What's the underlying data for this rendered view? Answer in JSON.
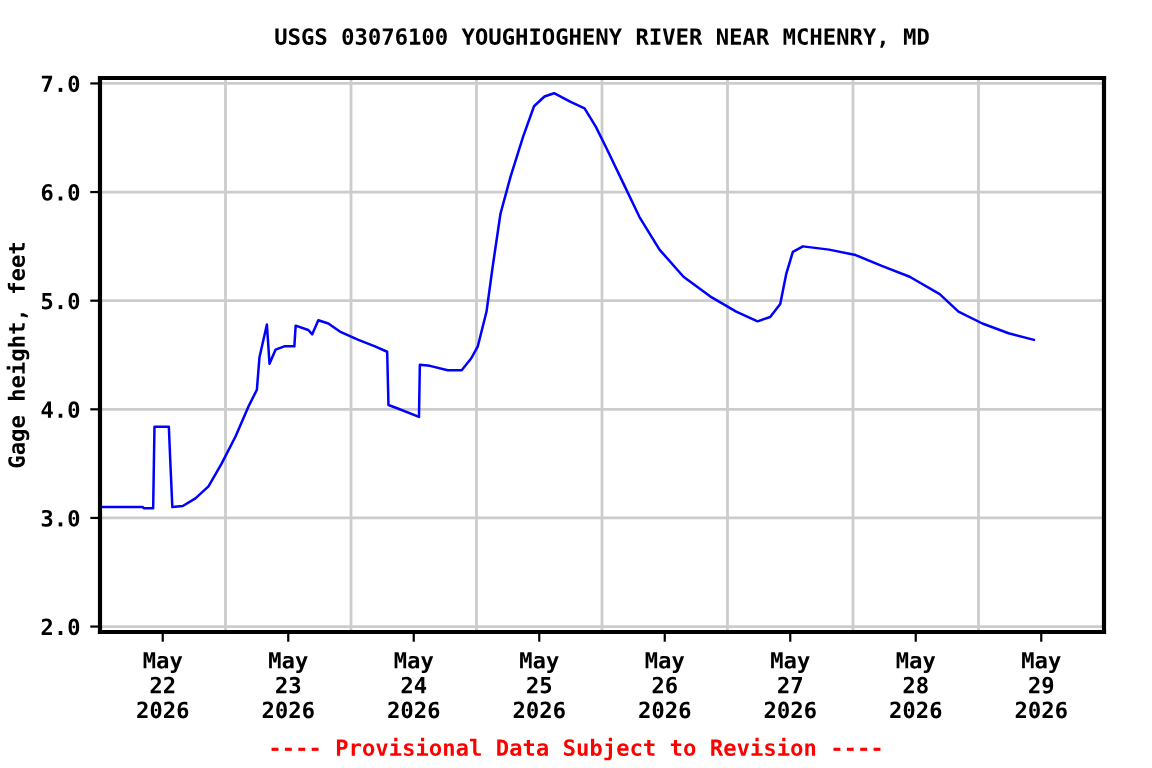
{
  "chart_data": {
    "type": "line",
    "title": "USGS 03076100 YOUGHIOGHENY RIVER NEAR MCHENRY, MD",
    "ylabel": "Gage height, feet",
    "annotations": [
      "---- Provisional Data Subject to Revision ----"
    ],
    "x": [
      "2026-05-21T12:30",
      "2026-05-21T20:10",
      "2026-05-21T20:25",
      "2026-05-21T22:10",
      "2026-05-21T22:25",
      "2026-05-22T01:10",
      "2026-05-22T01:25",
      "2026-05-22T01:50",
      "2026-05-22T03:50",
      "2026-05-22T06:15",
      "2026-05-22T08:45",
      "2026-05-22T11:15",
      "2026-05-22T13:55",
      "2026-05-22T16:20",
      "2026-05-22T18:00",
      "2026-05-22T18:30",
      "2026-05-22T19:55",
      "2026-05-22T20:25",
      "2026-05-22T21:35",
      "2026-05-22T23:15",
      "2026-05-23T01:10",
      "2026-05-23T01:25",
      "2026-05-23T03:50",
      "2026-05-23T04:35",
      "2026-05-23T05:45",
      "2026-05-23T07:40",
      "2026-05-23T10:05",
      "2026-05-23T13:25",
      "2026-05-23T16:35",
      "2026-05-23T18:55",
      "2026-05-23T19:10",
      "2026-05-23T20:50",
      "2026-05-24T01:00",
      "2026-05-24T01:10",
      "2026-05-24T03:05",
      "2026-05-24T06:30",
      "2026-05-24T09:10",
      "2026-05-24T11:00",
      "2026-05-24T12:15",
      "2026-05-24T13:55",
      "2026-05-24T15:05",
      "2026-05-24T16:35",
      "2026-05-24T18:30",
      "2026-05-24T20:55",
      "2026-05-24T23:00",
      "2026-05-25T01:00",
      "2026-05-25T02:50",
      "2026-05-25T06:00",
      "2026-05-25T08:40",
      "2026-05-25T10:50",
      "2026-05-25T13:00",
      "2026-05-25T16:05",
      "2026-05-25T19:10",
      "2026-05-25T23:00",
      "2026-05-26T03:35",
      "2026-05-26T08:40",
      "2026-05-26T13:40",
      "2026-05-26T17:45",
      "2026-05-26T20:10",
      "2026-05-26T22:05",
      "2026-05-26T23:15",
      "2026-05-27T00:30",
      "2026-05-27T02:25",
      "2026-05-27T07:25",
      "2026-05-27T12:30",
      "2026-05-27T17:30",
      "2026-05-27T22:50",
      "2026-05-28T04:35",
      "2026-05-28T08:10",
      "2026-05-28T12:45",
      "2026-05-28T17:45",
      "2026-05-28T22:35"
    ],
    "series": [
      {
        "color": "#0000ff",
        "values": [
          3.1,
          3.1,
          3.09,
          3.09,
          3.84,
          3.84,
          3.55,
          3.1,
          3.11,
          3.18,
          3.29,
          3.5,
          3.75,
          4.02,
          4.18,
          4.48,
          4.78,
          4.42,
          4.55,
          4.58,
          4.58,
          4.77,
          4.73,
          4.69,
          4.82,
          4.79,
          4.71,
          4.64,
          4.58,
          4.53,
          4.04,
          4.01,
          3.93,
          4.41,
          4.4,
          4.36,
          4.36,
          4.47,
          4.58,
          4.9,
          5.31,
          5.8,
          6.14,
          6.51,
          6.79,
          6.88,
          6.91,
          6.83,
          6.77,
          6.6,
          6.39,
          6.08,
          5.77,
          5.47,
          5.22,
          5.04,
          4.9,
          4.81,
          4.85,
          4.97,
          5.25,
          5.45,
          5.5,
          5.47,
          5.42,
          5.32,
          5.22,
          5.06,
          4.9,
          4.79,
          4.7,
          4.64
        ]
      }
    ],
    "xlim": [
      "2026-05-21T12:00",
      "2026-05-29T12:00"
    ],
    "xticks": [
      {
        "value": "2026-05-22",
        "label": "May\n22\n2026"
      },
      {
        "value": "2026-05-22T12:00",
        "label": null
      },
      {
        "value": "2026-05-23",
        "label": "May\n23\n2026"
      },
      {
        "value": "2026-05-23T12:00",
        "label": null
      },
      {
        "value": "2026-05-24",
        "label": "May\n24\n2026"
      },
      {
        "value": "2026-05-24T12:00",
        "label": null
      },
      {
        "value": "2026-05-25",
        "label": "May\n25\n2026"
      },
      {
        "value": "2026-05-25T12:00",
        "label": null
      },
      {
        "value": "2026-05-26",
        "label": "May\n26\n2026"
      },
      {
        "value": "2026-05-26T12:00",
        "label": null
      },
      {
        "value": "2026-05-27",
        "label": "May\n27\n2026"
      },
      {
        "value": "2026-05-27T12:00",
        "label": null
      },
      {
        "value": "2026-05-28",
        "label": "May\n28\n2026"
      },
      {
        "value": "2026-05-28T12:00",
        "label": null
      },
      {
        "value": "2026-05-29",
        "label": "May\n29\n2026"
      }
    ],
    "ylim": [
      1.95,
      7.05
    ],
    "yticks": [
      {
        "value": 2,
        "label": "2.0"
      },
      {
        "value": 3,
        "label": "3.0"
      },
      {
        "value": 4,
        "label": "4.0"
      },
      {
        "value": 5,
        "label": "5.0"
      },
      {
        "value": 6,
        "label": "6.0"
      },
      {
        "value": 7,
        "label": "7.0"
      }
    ],
    "grid": true
  }
}
